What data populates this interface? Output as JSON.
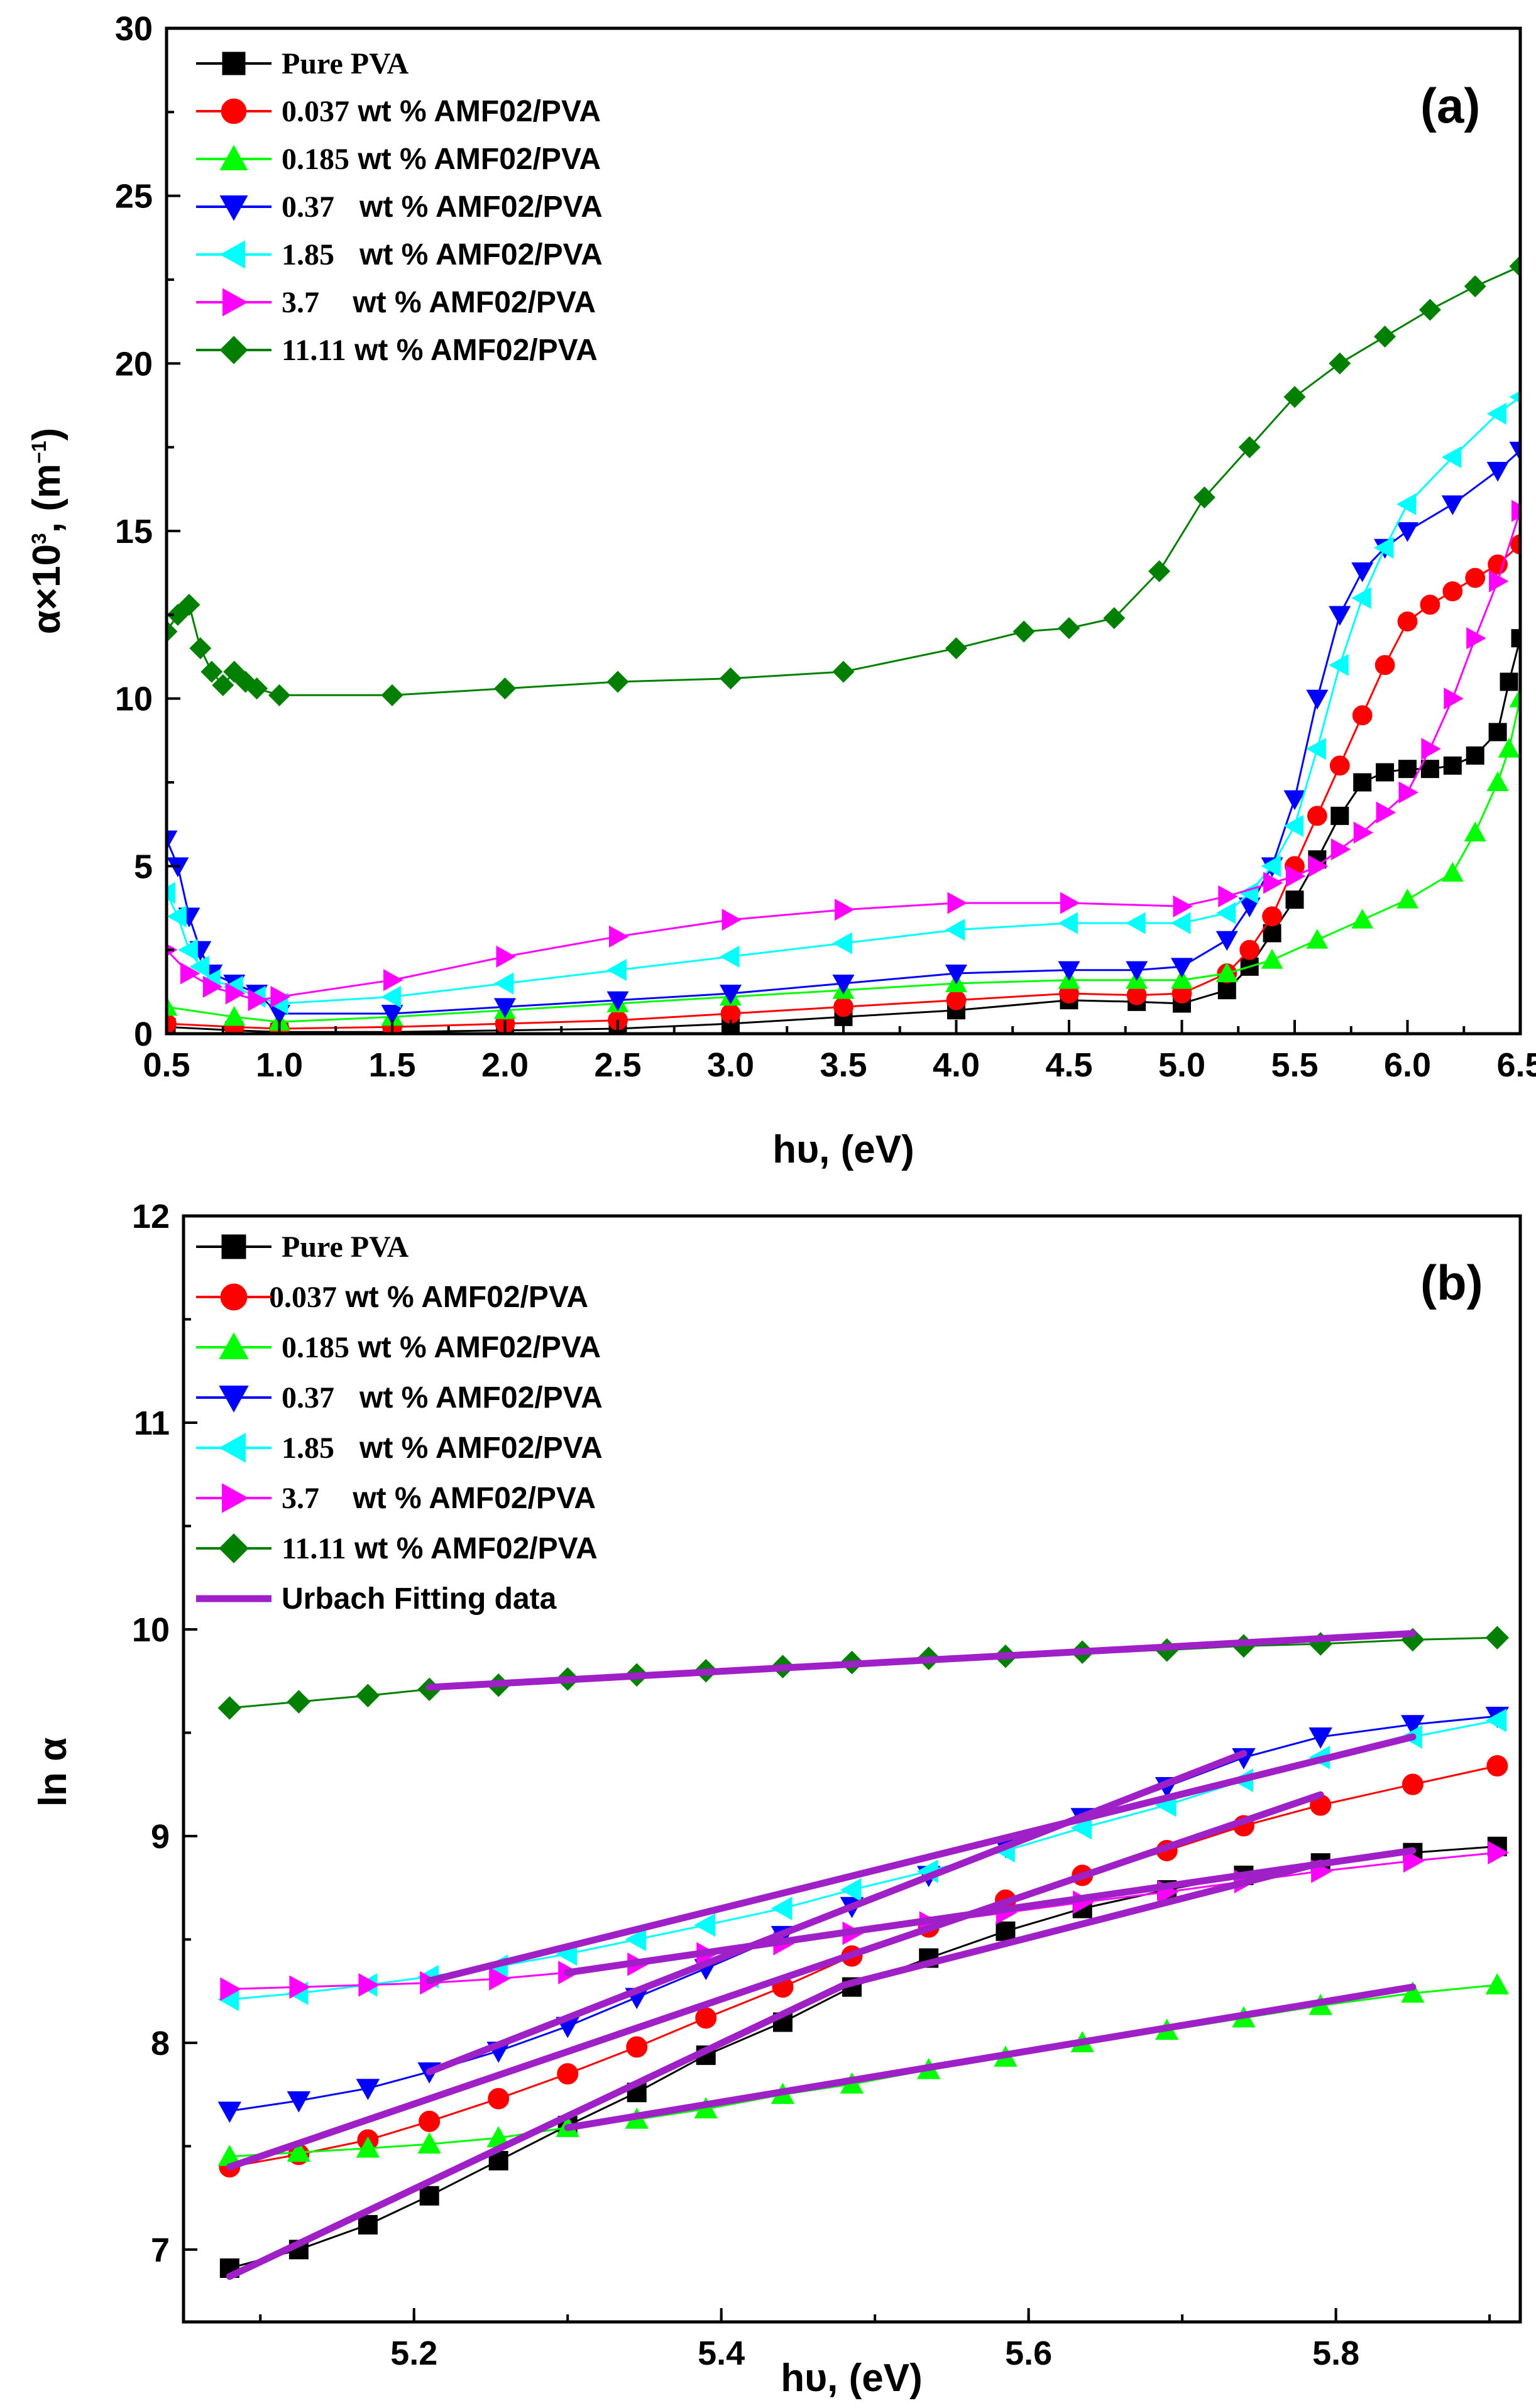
{
  "chart_data": [
    {
      "type": "line",
      "panel_label": "(a)",
      "xlabel": "hυ, (eV)",
      "ylabel": "α×10",
      "ylabel_exp": "3",
      "ylabel_unit": ", (m",
      "ylabel_unit_exp": "−1",
      "ylabel_close": ")",
      "xlim": [
        0.5,
        6.5
      ],
      "ylim": [
        0,
        30
      ],
      "xticks": [
        "0.5",
        "1.0",
        "1.5",
        "2.0",
        "2.5",
        "3.0",
        "3.5",
        "4.0",
        "4.5",
        "5.0",
        "5.5",
        "6.0",
        "6.5"
      ],
      "yticks": [
        "0",
        "5",
        "10",
        "15",
        "20",
        "25",
        "30"
      ],
      "legend_position": "top-left",
      "series": [
        {
          "name": "Pure PVA",
          "name_num": "Pure PVA",
          "name_rest": "",
          "color": "#000000",
          "marker": "square",
          "x": [
            0.5,
            0.8,
            1.0,
            1.5,
            2.0,
            2.5,
            3.0,
            3.5,
            4.0,
            4.5,
            4.8,
            5.0,
            5.2,
            5.3,
            5.4,
            5.5,
            5.6,
            5.7,
            5.8,
            5.9,
            6.0,
            6.1,
            6.2,
            6.3,
            6.4,
            6.45,
            6.5
          ],
          "y": [
            0.2,
            0.1,
            0.05,
            0.05,
            0.1,
            0.15,
            0.3,
            0.5,
            0.7,
            1.0,
            0.95,
            0.9,
            1.3,
            2.0,
            3.0,
            4.0,
            5.2,
            6.5,
            7.5,
            7.8,
            7.9,
            7.9,
            8.0,
            8.3,
            9.0,
            10.5,
            11.8
          ]
        },
        {
          "name": "0.037 wt % AMF02/PVA",
          "name_num": "0.037",
          "name_rest": " wt % AMF02/PVA",
          "color": "#ff0000",
          "marker": "circle",
          "x": [
            0.5,
            0.8,
            1.0,
            1.5,
            2.0,
            2.5,
            3.0,
            3.5,
            4.0,
            4.5,
            4.8,
            5.0,
            5.2,
            5.3,
            5.4,
            5.5,
            5.6,
            5.7,
            5.8,
            5.9,
            6.0,
            6.1,
            6.2,
            6.3,
            6.4,
            6.5
          ],
          "y": [
            0.3,
            0.2,
            0.15,
            0.2,
            0.3,
            0.4,
            0.6,
            0.8,
            1.0,
            1.2,
            1.15,
            1.2,
            1.8,
            2.5,
            3.5,
            5.0,
            6.5,
            8.0,
            9.5,
            11.0,
            12.3,
            12.8,
            13.2,
            13.6,
            14.0,
            14.6
          ]
        },
        {
          "name": "0.185 wt % AMF02/PVA",
          "name_num": "0.185",
          "name_rest": " wt % AMF02/PVA",
          "color": "#00ff00",
          "marker": "triangle-up",
          "x": [
            0.5,
            0.8,
            1.0,
            1.5,
            2.0,
            2.5,
            3.0,
            3.5,
            4.0,
            4.5,
            4.8,
            5.0,
            5.2,
            5.4,
            5.6,
            5.8,
            6.0,
            6.2,
            6.3,
            6.4,
            6.45,
            6.5
          ],
          "y": [
            0.8,
            0.5,
            0.35,
            0.5,
            0.7,
            0.9,
            1.1,
            1.3,
            1.5,
            1.6,
            1.6,
            1.6,
            1.8,
            2.2,
            2.8,
            3.4,
            4.0,
            4.8,
            6.0,
            7.5,
            8.5,
            10.0
          ]
        },
        {
          "name": "0.37 wt % AMF02/PVA",
          "name_num": "0.37",
          "name_rest": "   wt % AMF02/PVA",
          "color": "#0000ff",
          "marker": "triangle-down",
          "x": [
            0.5,
            0.55,
            0.6,
            0.65,
            0.7,
            0.8,
            0.9,
            1.0,
            1.5,
            2.0,
            2.5,
            3.0,
            3.5,
            4.0,
            4.5,
            4.8,
            5.0,
            5.2,
            5.3,
            5.4,
            5.5,
            5.6,
            5.7,
            5.8,
            5.9,
            6.0,
            6.2,
            6.4,
            6.5
          ],
          "y": [
            5.8,
            5.0,
            3.5,
            2.5,
            1.8,
            1.5,
            1.2,
            0.6,
            0.6,
            0.8,
            1.0,
            1.2,
            1.5,
            1.8,
            1.9,
            1.9,
            2.0,
            2.8,
            3.8,
            5.0,
            7.0,
            10.0,
            12.5,
            13.8,
            14.5,
            15.0,
            15.8,
            16.8,
            17.4
          ]
        },
        {
          "name": "1.85 wt % AMF02/PVA",
          "name_num": "1.85",
          "name_rest": "   wt % AMF02/PVA",
          "color": "#00ffff",
          "marker": "triangle-left",
          "x": [
            0.5,
            0.55,
            0.6,
            0.65,
            0.7,
            0.8,
            0.9,
            1.0,
            1.5,
            2.0,
            2.5,
            3.0,
            3.5,
            4.0,
            4.5,
            4.8,
            5.0,
            5.2,
            5.3,
            5.4,
            5.5,
            5.6,
            5.7,
            5.8,
            5.9,
            6.0,
            6.2,
            6.4,
            6.5
          ],
          "y": [
            4.2,
            3.5,
            2.5,
            2.0,
            1.6,
            1.4,
            1.1,
            0.9,
            1.1,
            1.5,
            1.9,
            2.3,
            2.7,
            3.1,
            3.3,
            3.3,
            3.3,
            3.6,
            4.2,
            5.0,
            6.2,
            8.5,
            11.0,
            13.0,
            14.5,
            15.8,
            17.2,
            18.5,
            19.0
          ]
        },
        {
          "name": "3.7 wt % AMF02/PVA",
          "name_num": "3.7",
          "name_rest": "    wt % AMF02/PVA",
          "color": "#ff00ff",
          "marker": "triangle-right",
          "x": [
            0.5,
            0.6,
            0.7,
            0.8,
            0.9,
            1.0,
            1.5,
            2.0,
            2.5,
            3.0,
            3.5,
            4.0,
            4.5,
            5.0,
            5.2,
            5.4,
            5.5,
            5.6,
            5.7,
            5.8,
            5.9,
            6.0,
            6.1,
            6.2,
            6.3,
            6.4,
            6.5
          ],
          "y": [
            2.5,
            1.8,
            1.4,
            1.2,
            1.0,
            1.1,
            1.6,
            2.3,
            2.9,
            3.4,
            3.7,
            3.9,
            3.9,
            3.8,
            4.1,
            4.5,
            4.7,
            5.0,
            5.5,
            6.0,
            6.6,
            7.2,
            8.5,
            10.0,
            11.8,
            13.5,
            15.6
          ]
        },
        {
          "name": "11.11 wt % AMF02/PVA",
          "name_num": "11.11",
          "name_rest": " wt % AMF02/PVA",
          "color": "#008000",
          "marker": "diamond",
          "x": [
            0.5,
            0.55,
            0.6,
            0.65,
            0.7,
            0.75,
            0.8,
            0.85,
            0.9,
            1.0,
            1.5,
            2.0,
            2.5,
            3.0,
            3.5,
            4.0,
            4.3,
            4.5,
            4.7,
            4.9,
            5.1,
            5.3,
            5.5,
            5.7,
            5.9,
            6.1,
            6.3,
            6.5
          ],
          "y": [
            12.0,
            12.5,
            12.8,
            11.5,
            10.8,
            10.4,
            10.8,
            10.5,
            10.3,
            10.1,
            10.1,
            10.3,
            10.5,
            10.6,
            10.8,
            11.5,
            12.0,
            12.1,
            12.4,
            13.8,
            16.0,
            17.5,
            19.0,
            20.0,
            20.8,
            21.6,
            22.3,
            22.9
          ]
        }
      ]
    },
    {
      "type": "line",
      "panel_label": "(b)",
      "xlabel": "hυ, (eV)",
      "ylabel": "ln α",
      "xlim": [
        5.05,
        5.92
      ],
      "ylim": [
        6.65,
        12
      ],
      "xticks": [
        "5.2",
        "5.4",
        "5.6",
        "5.8"
      ],
      "yticks": [
        "7",
        "8",
        "9",
        "10",
        "11",
        "12"
      ],
      "legend_position": "top-left",
      "series": [
        {
          "name": "Pure PVA",
          "name_num": "Pure PVA",
          "name_rest": "",
          "color": "#000000",
          "marker": "square",
          "x": [
            5.08,
            5.125,
            5.17,
            5.21,
            5.255,
            5.3,
            5.345,
            5.39,
            5.44,
            5.485,
            5.535,
            5.585,
            5.635,
            5.69,
            5.74,
            5.79,
            5.85,
            5.905
          ],
          "y": [
            6.91,
            7.0,
            7.12,
            7.26,
            7.43,
            7.6,
            7.76,
            7.94,
            8.1,
            8.27,
            8.41,
            8.54,
            8.65,
            8.74,
            8.81,
            8.87,
            8.92,
            8.95
          ]
        },
        {
          "name": "0.037 wt % AMF02/PVA",
          "name_num": "0.037",
          "name_rest": " wt % AMF02/PVA",
          "color": "#ff0000",
          "marker": "circle",
          "x": [
            5.08,
            5.125,
            5.17,
            5.21,
            5.255,
            5.3,
            5.345,
            5.39,
            5.44,
            5.485,
            5.535,
            5.585,
            5.635,
            5.69,
            5.74,
            5.79,
            5.85,
            5.905
          ],
          "y": [
            7.4,
            7.46,
            7.53,
            7.62,
            7.73,
            7.85,
            7.98,
            8.12,
            8.27,
            8.42,
            8.56,
            8.69,
            8.81,
            8.93,
            9.05,
            9.15,
            9.25,
            9.34
          ]
        },
        {
          "name": "0.185 wt % AMF02/PVA",
          "name_num": "0.185",
          "name_rest": " wt % AMF02/PVA",
          "color": "#00ff00",
          "marker": "triangle-up",
          "x": [
            5.08,
            5.125,
            5.17,
            5.21,
            5.255,
            5.3,
            5.345,
            5.39,
            5.44,
            5.485,
            5.535,
            5.585,
            5.635,
            5.69,
            5.74,
            5.79,
            5.85,
            5.905
          ],
          "y": [
            7.45,
            7.47,
            7.49,
            7.51,
            7.54,
            7.59,
            7.63,
            7.68,
            7.75,
            7.8,
            7.87,
            7.93,
            8.0,
            8.06,
            8.12,
            8.18,
            8.24,
            8.28
          ]
        },
        {
          "name": "0.37 wt % AMF02/PVA",
          "name_num": "0.37",
          "name_rest": "   wt % AMF02/PVA",
          "color": "#0000ff",
          "marker": "triangle-down",
          "x": [
            5.08,
            5.125,
            5.17,
            5.21,
            5.255,
            5.3,
            5.345,
            5.39,
            5.44,
            5.485,
            5.535,
            5.585,
            5.635,
            5.69,
            5.74,
            5.79,
            5.85,
            5.905
          ],
          "y": [
            7.67,
            7.72,
            7.78,
            7.86,
            7.96,
            8.08,
            8.22,
            8.36,
            8.52,
            8.66,
            8.81,
            8.95,
            9.09,
            9.24,
            9.38,
            9.48,
            9.54,
            9.58
          ]
        },
        {
          "name": "1.85 wt % AMF02/PVA",
          "name_num": "1.85",
          "name_rest": "   wt % AMF02/PVA",
          "color": "#00ffff",
          "marker": "triangle-left",
          "x": [
            5.08,
            5.125,
            5.17,
            5.21,
            5.255,
            5.3,
            5.345,
            5.39,
            5.44,
            5.485,
            5.535,
            5.585,
            5.635,
            5.69,
            5.74,
            5.79,
            5.85,
            5.905
          ],
          "y": [
            8.21,
            8.24,
            8.28,
            8.32,
            8.37,
            8.43,
            8.5,
            8.57,
            8.65,
            8.74,
            8.83,
            8.93,
            9.04,
            9.15,
            9.27,
            9.38,
            9.48,
            9.56
          ]
        },
        {
          "name": "3.7 wt % AMF02/PVA",
          "name_num": "3.7",
          "name_rest": "    wt % AMF02/PVA",
          "color": "#ff00ff",
          "marker": "triangle-right",
          "x": [
            5.08,
            5.125,
            5.17,
            5.21,
            5.255,
            5.3,
            5.345,
            5.39,
            5.44,
            5.485,
            5.535,
            5.585,
            5.635,
            5.69,
            5.74,
            5.79,
            5.85,
            5.905
          ],
          "y": [
            8.26,
            8.27,
            8.28,
            8.29,
            8.31,
            8.34,
            8.38,
            8.43,
            8.48,
            8.53,
            8.58,
            8.63,
            8.68,
            8.73,
            8.78,
            8.83,
            8.88,
            8.92
          ]
        },
        {
          "name": "11.11 wt % AMF02/PVA",
          "name_num": "11.11",
          "name_rest": " wt % AMF02/PVA",
          "color": "#008000",
          "marker": "diamond",
          "x": [
            5.08,
            5.125,
            5.17,
            5.21,
            5.255,
            5.3,
            5.345,
            5.39,
            5.44,
            5.485,
            5.535,
            5.585,
            5.635,
            5.69,
            5.74,
            5.79,
            5.85,
            5.905
          ],
          "y": [
            9.62,
            9.65,
            9.68,
            9.71,
            9.73,
            9.76,
            9.78,
            9.8,
            9.82,
            9.84,
            9.86,
            9.87,
            9.89,
            9.9,
            9.92,
            9.93,
            9.95,
            9.96
          ]
        }
      ],
      "fit_series": {
        "name": "Urbach Fitting data",
        "color": "#a020c8",
        "lines": [
          {
            "x": [
              5.21,
              5.85
            ],
            "y": [
              9.72,
              9.98
            ]
          },
          {
            "x": [
              5.08,
              5.48
            ],
            "y": [
              6.87,
              8.28
            ]
          },
          {
            "x": [
              5.48,
              5.79
            ],
            "y": [
              8.28,
              8.87
            ]
          },
          {
            "x": [
              5.08,
              5.79
            ],
            "y": [
              7.4,
              9.2
            ]
          },
          {
            "x": [
              5.3,
              5.85
            ],
            "y": [
              7.59,
              8.27
            ]
          },
          {
            "x": [
              5.21,
              5.74
            ],
            "y": [
              7.86,
              9.4
            ]
          },
          {
            "x": [
              5.21,
              5.85
            ],
            "y": [
              8.3,
              9.48
            ]
          },
          {
            "x": [
              5.3,
              5.85
            ],
            "y": [
              8.34,
              8.93
            ]
          }
        ]
      }
    }
  ]
}
